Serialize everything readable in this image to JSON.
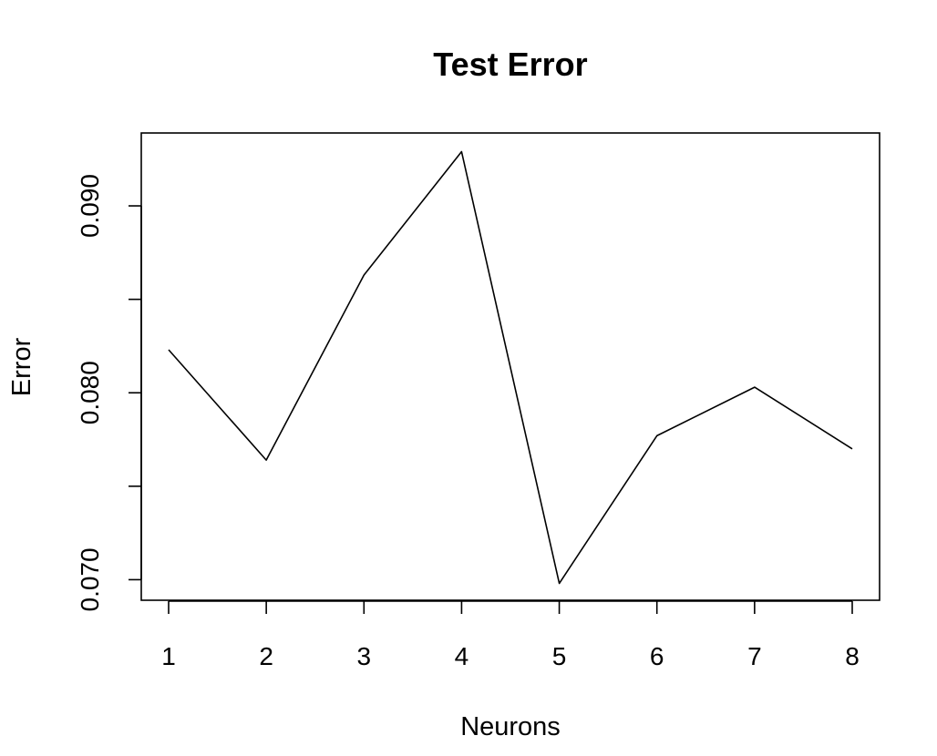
{
  "chart_data": {
    "type": "line",
    "title": "Test Error",
    "xlabel": "Neurons",
    "ylabel": "Error",
    "x": [
      1,
      2,
      3,
      4,
      5,
      6,
      7,
      8
    ],
    "y": [
      0.0823,
      0.0764,
      0.0863,
      0.0929,
      0.0698,
      0.0777,
      0.0803,
      0.077
    ],
    "xlim": [
      0.72,
      8.28
    ],
    "ylim": [
      0.0689,
      0.0939
    ],
    "xticks": [
      1,
      2,
      3,
      4,
      5,
      6,
      7,
      8
    ],
    "yticks": [
      0.07,
      0.075,
      0.08,
      0.085,
      0.09
    ],
    "yticks_labeled": [
      "0.070",
      "0.080",
      "0.090"
    ],
    "grid": false,
    "line_color": "#000000"
  }
}
